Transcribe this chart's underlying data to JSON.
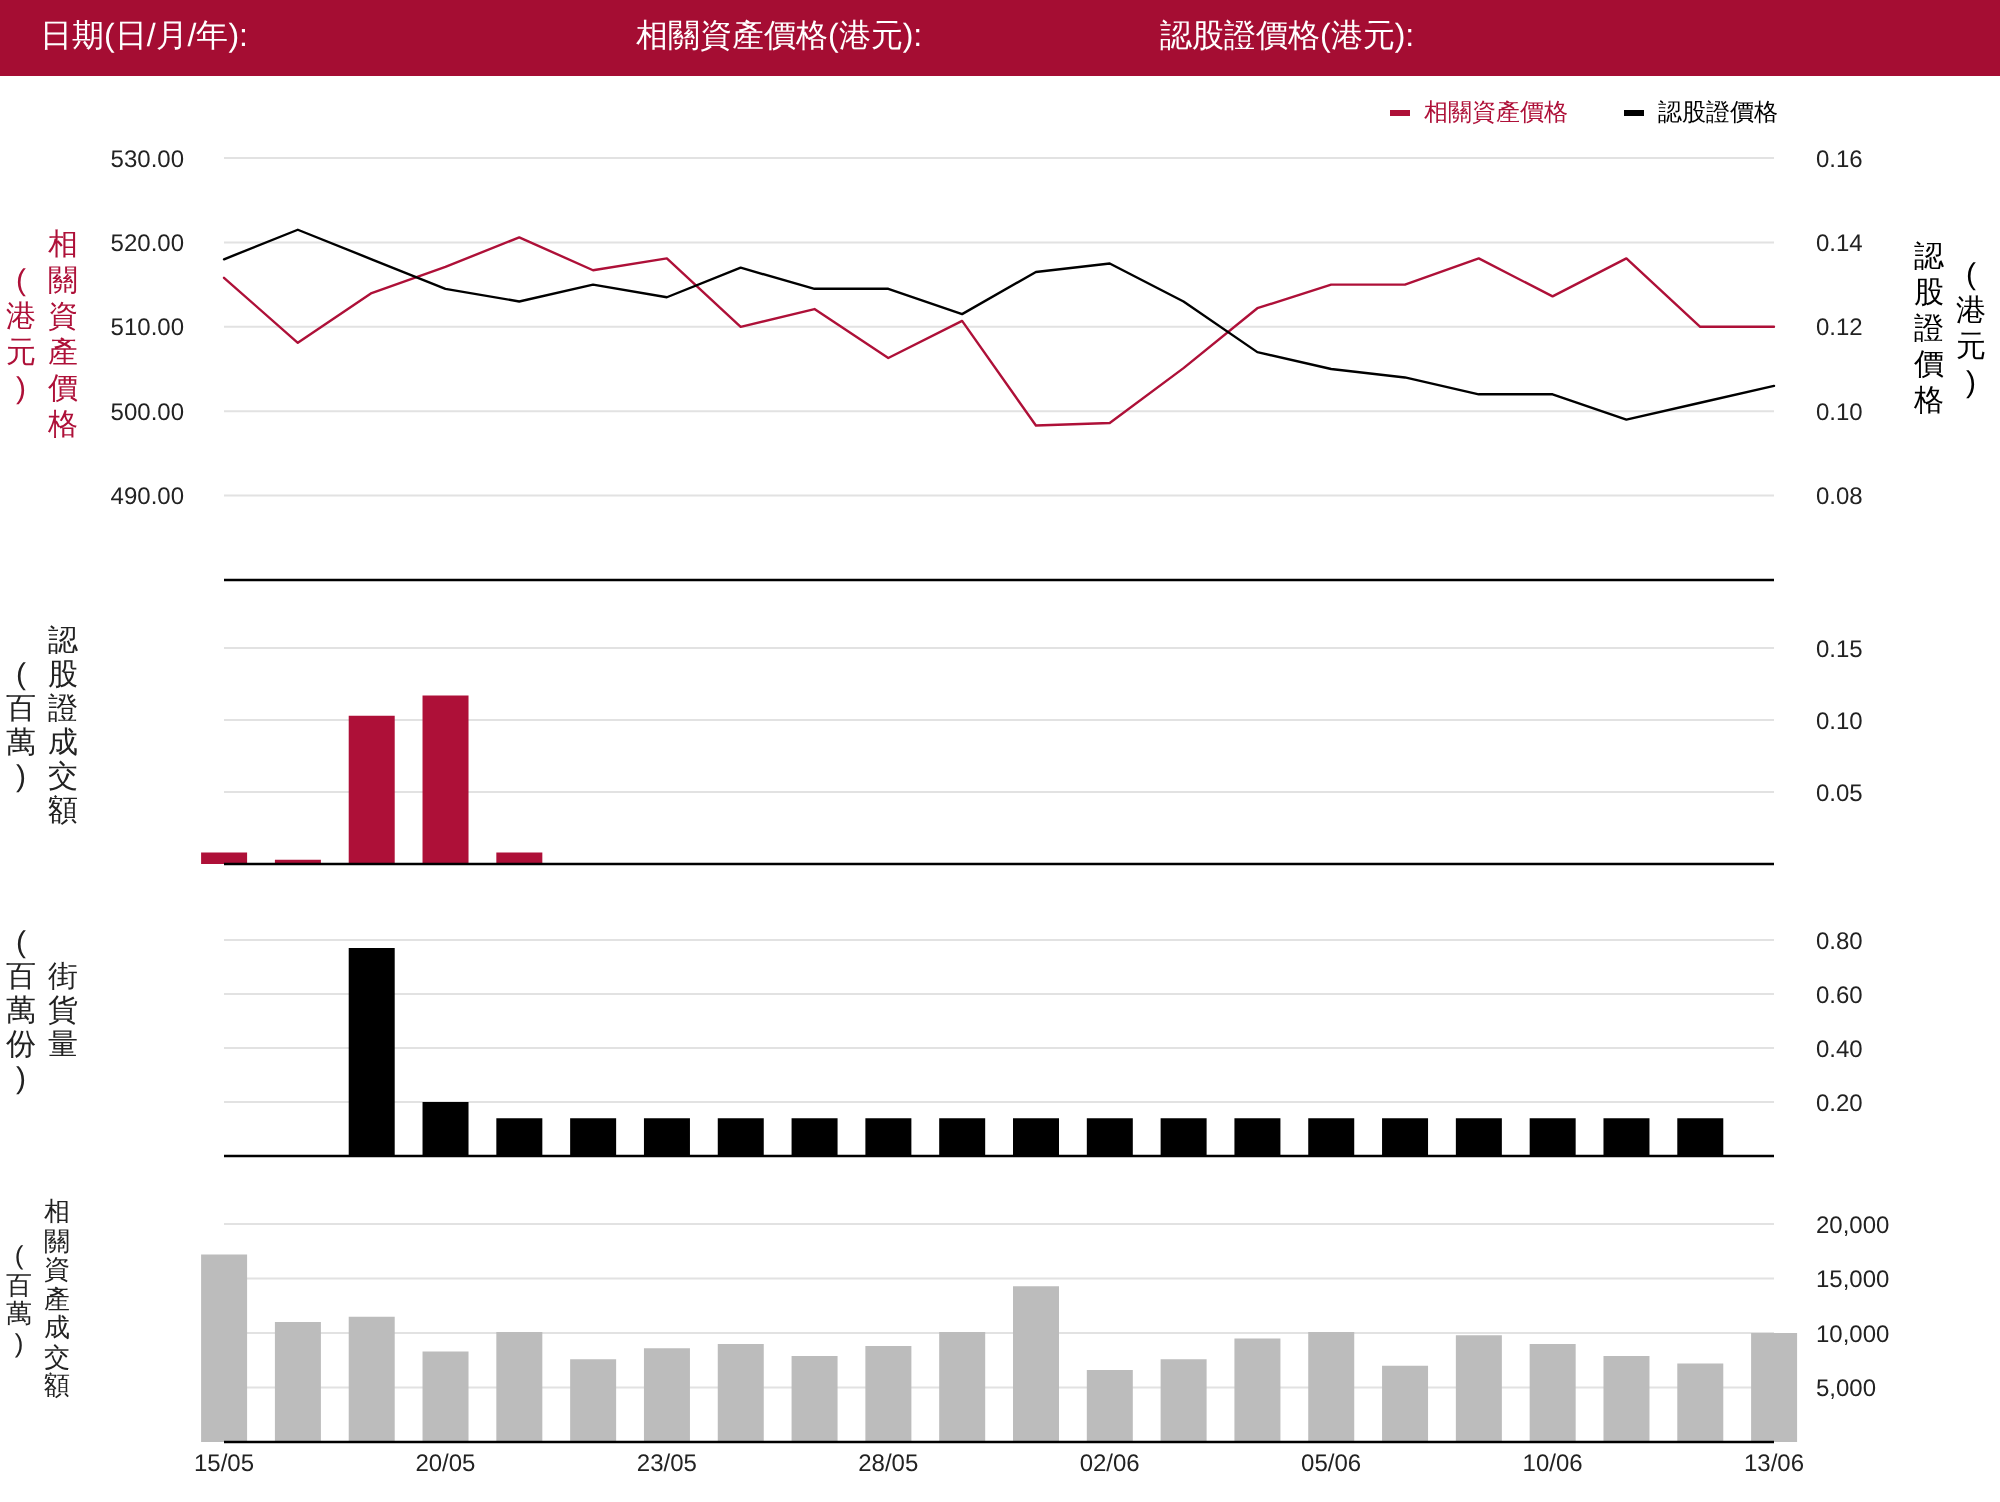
{
  "chart_data": [
    {
      "type": "line",
      "annotations": [
        "日期(日/月/年):",
        "相關資產價格(港元):",
        "認股證價格(港元):"
      ],
      "ylabel": "相關資產價格(港元)",
      "y2label": "認股證價格(港元)",
      "categories": [
        null,
        null,
        null,
        null,
        null,
        null,
        null,
        null,
        null,
        null,
        null,
        null,
        null,
        null,
        null,
        null,
        null,
        null,
        null,
        null,
        null,
        null
      ],
      "series": [
        {
          "name": "相關資產價格",
          "color": "#ae1038",
          "values": [
            515.8,
            508.1,
            514.0,
            517.1,
            520.6,
            516.7,
            518.1,
            510.0,
            512.1,
            506.3,
            510.7,
            498.3,
            498.6,
            505.1,
            512.2,
            515.0,
            515.0,
            518.1,
            513.6,
            518.1,
            510.0,
            510.0
          ]
        },
        {
          "name": "認股證價格",
          "color": "#000000",
          "axis": "y2",
          "values": [
            0.136,
            0.143,
            0.136,
            0.129,
            0.126,
            0.13,
            0.127,
            0.134,
            0.129,
            0.129,
            0.123,
            0.133,
            0.135,
            0.126,
            0.114,
            0.11,
            0.108,
            0.104,
            0.104,
            0.098,
            0.102,
            0.106
          ]
        }
      ],
      "ylim": [
        480,
        530
      ],
      "yticks": [
        {
          "value": 490,
          "label": "490.00"
        },
        {
          "value": 500,
          "label": "500.00"
        },
        {
          "value": 510,
          "label": "510.00"
        },
        {
          "value": 520,
          "label": "520.00"
        },
        {
          "value": 530,
          "label": "530.00"
        }
      ],
      "y2lim": [
        0.06,
        0.16
      ],
      "y2ticks": [
        0.08,
        {
          "value": 0.1,
          "label": "0.10"
        },
        0.12,
        0.14,
        0.16
      ],
      "grid": "y",
      "legend": "top right",
      "tick_labels": "y"
    },
    {
      "type": "bar",
      "ylabel": "認股證成交額(百萬)",
      "categories": [
        null,
        null,
        null,
        null,
        null,
        null,
        null,
        null,
        null,
        null,
        null,
        null,
        null,
        null,
        null,
        null,
        null,
        null,
        null,
        null,
        null,
        null
      ],
      "values": [
        0.008,
        0.003,
        0.103,
        0.117,
        0.008,
        null,
        null,
        null,
        null,
        null,
        null,
        null,
        null,
        null,
        null,
        null,
        null,
        null,
        null,
        null,
        null,
        null
      ],
      "color": "#ae1038",
      "ylim": [
        0,
        0.15
      ],
      "yticks": [
        0.05,
        {
          "value": 0.1,
          "label": "0.10"
        },
        0.15
      ],
      "grid": "y",
      "tick_labels": "y"
    },
    {
      "type": "bar",
      "ylabel": "街貨量(百萬份)",
      "categories": [
        null,
        null,
        null,
        null,
        null,
        null,
        null,
        null,
        null,
        null,
        null,
        null,
        null,
        null,
        null,
        null,
        null,
        null,
        null,
        null,
        null,
        null
      ],
      "values": [
        null,
        null,
        0.77,
        0.2,
        0.14,
        0.14,
        0.14,
        0.14,
        0.14,
        0.14,
        0.14,
        0.14,
        0.14,
        0.14,
        0.14,
        0.14,
        0.14,
        0.14,
        0.14,
        0.14,
        0.14,
        null
      ],
      "color": "#000000",
      "ylim": [
        0,
        0.8
      ],
      "yticks": [
        {
          "value": 0.2,
          "label": "0.20"
        },
        {
          "value": 0.4,
          "label": "0.40"
        },
        {
          "value": 0.6,
          "label": "0.60"
        },
        {
          "value": 0.8,
          "label": "0.80"
        }
      ],
      "grid": "y",
      "tick_labels": "y"
    },
    {
      "type": "bar",
      "ylabel": "相關資產成交額(百萬)",
      "categories": [
        "15/05",
        null,
        null,
        "20/05",
        null,
        null,
        "23/05",
        null,
        null,
        "28/05",
        null,
        null,
        "02/06",
        null,
        null,
        "05/06",
        null,
        null,
        "10/06",
        null,
        null,
        "13/06"
      ],
      "values": [
        17200,
        11000,
        11500,
        8300,
        10100,
        7600,
        8600,
        9000,
        7900,
        8800,
        10100,
        14300,
        6600,
        7600,
        9500,
        10100,
        7000,
        9800,
        9000,
        7900,
        7200,
        10000
      ],
      "color": "#bcbcbc",
      "ylim": [
        0,
        20000
      ],
      "yticks": [
        {
          "value": 5000,
          "label": "5,000"
        },
        {
          "value": 10000,
          "label": "10,000"
        },
        {
          "value": 15000,
          "label": "15,000"
        },
        {
          "value": 20000,
          "label": "20,000"
        }
      ],
      "grid": "y"
    }
  ]
}
